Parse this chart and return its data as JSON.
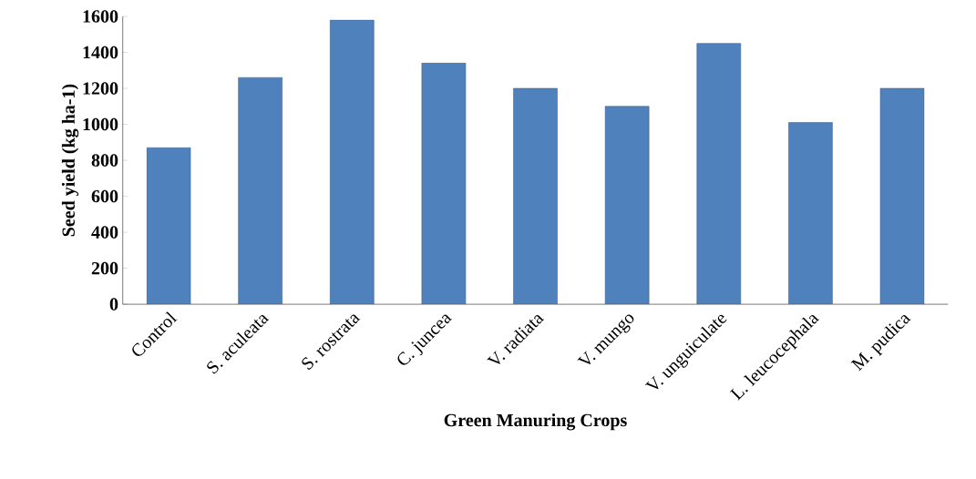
{
  "chart_data": {
    "type": "bar",
    "xlabel": "Green Manuring Crops",
    "ylabel": "Seed yield (kg ha-1)",
    "categories": [
      "Control",
      "S. aculeata",
      "S. rostrata",
      "C. juncea",
      "V. radiata",
      "V. mungo",
      "V. unguiculate",
      "L. leucocephala",
      "M. pudica"
    ],
    "values": [
      870,
      1260,
      1580,
      1340,
      1200,
      1100,
      1450,
      1010,
      1200
    ],
    "color": "#4f81bd",
    "ylim": [
      0,
      1600
    ],
    "yticks": [
      0,
      200,
      400,
      600,
      800,
      1000,
      1200,
      1400,
      1600
    ]
  }
}
